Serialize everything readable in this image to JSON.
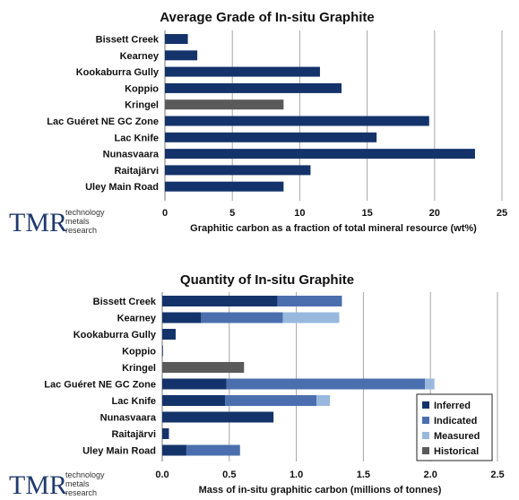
{
  "logo": {
    "mark": "TMR",
    "line1": "technology",
    "line2": "metals",
    "line3": "research"
  },
  "colors": {
    "inferred": "#14336a",
    "indicated": "#4b6fae",
    "measured": "#98b8de",
    "historical": "#5a5a5a",
    "grid": "#a6a6a6"
  },
  "chart_data": [
    {
      "type": "bar",
      "orientation": "horizontal",
      "title": "Average Grade of In-situ Graphite",
      "xlabel": "Graphitic carbon as a fraction of total mineral resource (wt%)",
      "ylabel": "",
      "xlim": [
        0,
        25
      ],
      "xticks": [
        "0",
        "5",
        "10",
        "15",
        "20",
        "25"
      ],
      "grid": true,
      "categories": [
        "Bissett Creek",
        "Kearney",
        "Kookaburra Gully",
        "Koppio",
        "Kringel",
        "Lac Guéret NE GC Zone",
        "Lac Knife",
        "Nunasvaara",
        "Raitajärvi",
        "Uley Main Road"
      ],
      "values": [
        1.7,
        2.4,
        11.5,
        13.1,
        8.8,
        19.6,
        15.7,
        23.0,
        10.8,
        8.8
      ],
      "bar_colors": [
        "inferred",
        "inferred",
        "inferred",
        "inferred",
        "historical",
        "inferred",
        "inferred",
        "inferred",
        "inferred",
        "inferred"
      ]
    },
    {
      "type": "bar",
      "orientation": "horizontal",
      "stacked": true,
      "title": "Quantity of In-situ Graphite",
      "xlabel": "Mass of in-situ graphitic carbon (millions of tonnes)",
      "ylabel": "",
      "xlim": [
        0,
        2.5
      ],
      "xticks": [
        "0.0",
        "0.5",
        "1.0",
        "1.5",
        "2.0",
        "2.5"
      ],
      "grid": true,
      "legend": "bottom-right",
      "categories": [
        "Bissett Creek",
        "Kearney",
        "Kookaburra Gully",
        "Koppio",
        "Kringel",
        "Lac Guéret NE GC Zone",
        "Lac Knife",
        "Nunasvaara",
        "Raitajärvi",
        "Uley Main Road"
      ],
      "series": [
        {
          "name": "Inferred",
          "color": "inferred",
          "values": [
            0.86,
            0.29,
            0.1,
            0.005,
            0,
            0.48,
            0.47,
            0.83,
            0.05,
            0.18
          ]
        },
        {
          "name": "Indicated",
          "color": "indicated",
          "values": [
            0.48,
            0.61,
            0,
            0,
            0,
            1.48,
            0.68,
            0,
            0,
            0.4
          ]
        },
        {
          "name": "Measured",
          "color": "measured",
          "values": [
            0,
            0.42,
            0,
            0,
            0,
            0.07,
            0.1,
            0,
            0,
            0
          ]
        },
        {
          "name": "Historical",
          "color": "historical",
          "values": [
            0,
            0,
            0,
            0,
            0.61,
            0,
            0,
            0,
            0,
            0
          ]
        }
      ]
    }
  ]
}
